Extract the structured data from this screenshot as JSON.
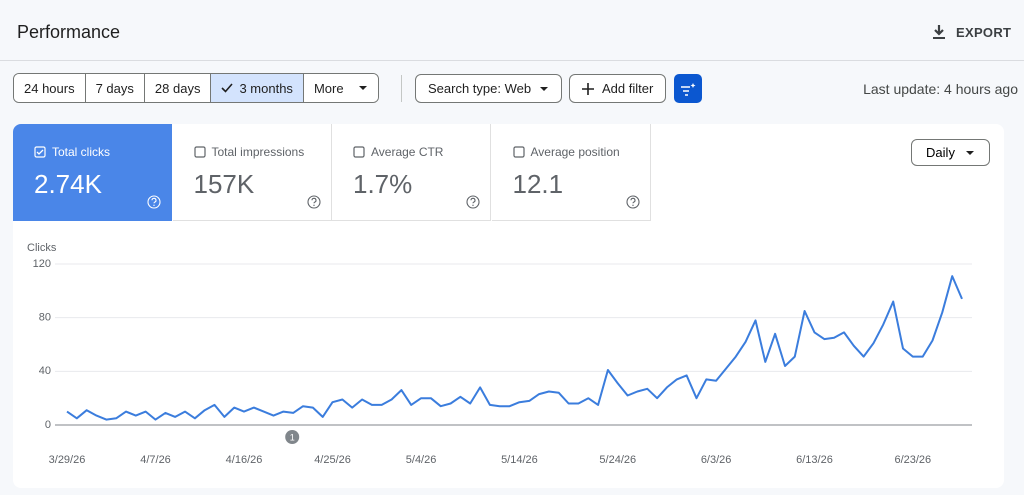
{
  "header": {
    "title": "Performance",
    "export": "EXPORT"
  },
  "toolbar": {
    "ranges": [
      "24 hours",
      "7 days",
      "28 days",
      "3 months",
      "More"
    ],
    "selected_range": 3,
    "search_type": "Search type: Web",
    "add_filter": "Add filter",
    "last_update": "Last update: 4 hours ago"
  },
  "metrics": [
    {
      "label": "Total clicks",
      "value": "2.74K",
      "selected": true
    },
    {
      "label": "Total impressions",
      "value": "157K",
      "selected": false
    },
    {
      "label": "Average CTR",
      "value": "1.7%",
      "selected": false
    },
    {
      "label": "Average position",
      "value": "12.1",
      "selected": false
    }
  ],
  "granularity": "Daily",
  "chart_data": {
    "type": "line",
    "y_label": "Clicks",
    "color": "#3b7ddd",
    "categories": [
      "3/29/26",
      null,
      null,
      null,
      null,
      null,
      null,
      null,
      null,
      "4/7/26",
      null,
      null,
      null,
      null,
      null,
      null,
      null,
      null,
      "4/16/26",
      null,
      null,
      null,
      null,
      null,
      null,
      null,
      null,
      "4/25/26",
      null,
      null,
      null,
      null,
      null,
      null,
      null,
      null,
      "5/4/26",
      null,
      null,
      null,
      null,
      null,
      null,
      null,
      null,
      null,
      "5/14/26",
      null,
      null,
      null,
      null,
      null,
      null,
      null,
      null,
      null,
      "5/24/26",
      null,
      null,
      null,
      null,
      null,
      null,
      null,
      null,
      null,
      "6/3/26",
      null,
      null,
      null,
      null,
      null,
      null,
      null,
      null,
      null,
      "6/13/26",
      null,
      null,
      null,
      null,
      null,
      null,
      null,
      null,
      null,
      "6/23/26",
      null,
      null,
      null,
      null,
      null
    ],
    "values": [
      10,
      5,
      11,
      7,
      4,
      5,
      10,
      7,
      10,
      4,
      9,
      6,
      10,
      5,
      11,
      15,
      6,
      13,
      10,
      13,
      10,
      7,
      10,
      9,
      14,
      13,
      6,
      17,
      19,
      13,
      19,
      15,
      15,
      19,
      26,
      15,
      20,
      20,
      14,
      16,
      21,
      16,
      28,
      15,
      14,
      14,
      17,
      18,
      23,
      25,
      24,
      16,
      16,
      20,
      15,
      41,
      31,
      22,
      25,
      27,
      20,
      28,
      34,
      37,
      20,
      34,
      33,
      42,
      51,
      62,
      78,
      47,
      68,
      44,
      51,
      85,
      69,
      64,
      65,
      69,
      59,
      51,
      61,
      75,
      92,
      57,
      51,
      51,
      63,
      84,
      111,
      94
    ],
    "ylim": [
      0,
      120
    ],
    "yticks": [
      0,
      40,
      80,
      120
    ],
    "grid": true,
    "annotations": [
      {
        "label": "1"
      }
    ]
  }
}
